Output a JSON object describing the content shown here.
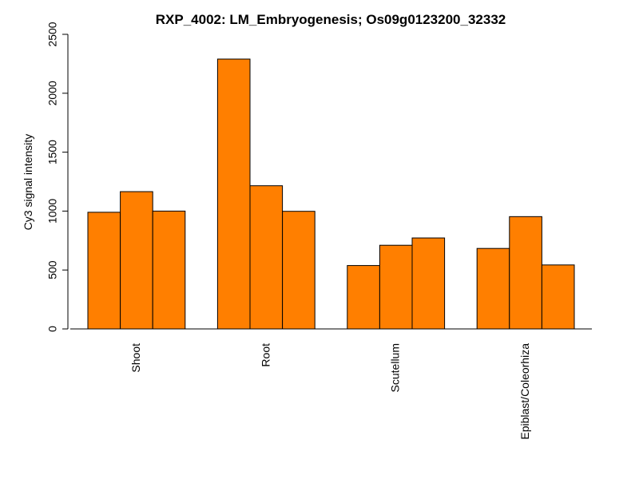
{
  "chart_data": {
    "type": "bar",
    "title": "RXP_4002: LM_Embryogenesis; Os09g0123200_32332",
    "xlabel": "",
    "ylabel": "Cy3 signal intensity",
    "ylim": [
      0,
      2500
    ],
    "yticks": [
      0,
      500,
      1000,
      1500,
      2000,
      2500
    ],
    "categories": [
      "Shoot",
      "Root",
      "Scutellum",
      "Epiblast/Coleorhiza"
    ],
    "values": [
      [
        990,
        1165,
        1000
      ],
      [
        2290,
        1215,
        998
      ],
      [
        538,
        710,
        772
      ],
      [
        683,
        953,
        543
      ]
    ],
    "bar_color": "#FF7F00",
    "bar_edge_color": "#000000",
    "grid": false,
    "legend": "none"
  }
}
